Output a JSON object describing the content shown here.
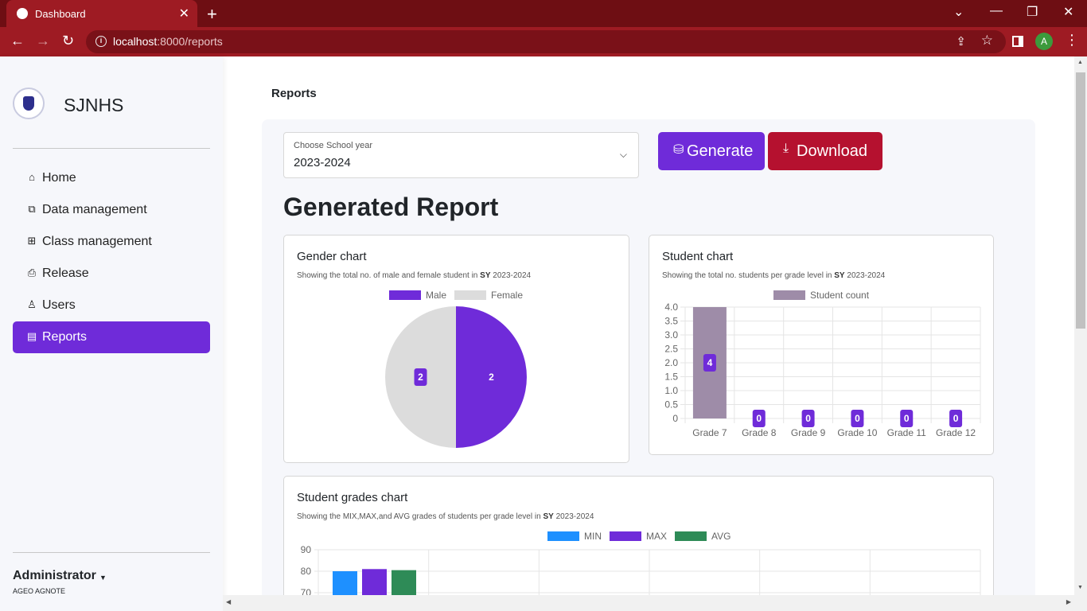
{
  "browser": {
    "tab_title": "Dashboard",
    "url_host": "localhost",
    "url_rest": ":8000/reports",
    "avatar_letter": "A",
    "theme_color": "#9e1b23"
  },
  "sidebar": {
    "brand": "SJNHS",
    "items": [
      {
        "label": "Home",
        "icon": "home-icon"
      },
      {
        "label": "Data management",
        "icon": "copy-icon"
      },
      {
        "label": "Class management",
        "icon": "grid-icon"
      },
      {
        "label": "Release",
        "icon": "printer-icon"
      },
      {
        "label": "Users",
        "icon": "person-icon"
      },
      {
        "label": "Reports",
        "icon": "report-icon",
        "active": true
      }
    ],
    "user": {
      "role": "Administrator",
      "name": "AGEO AGNOTE"
    }
  },
  "page": {
    "title": "Reports",
    "select": {
      "label": "Choose School year",
      "value": "2023-2024"
    },
    "generate_label": "Generate",
    "download_label": "Download",
    "heading": "Generated Report"
  },
  "colors": {
    "accent": "#6f2bd9",
    "danger": "#b5112f",
    "female": "#dcdcdc",
    "student": "#9e8ca8",
    "min": "#1e90ff",
    "avg": "#2e8b57"
  },
  "chart_data": [
    {
      "type": "pie",
      "title": "Gender chart",
      "subtitle_prefix": "Showing the total no. of male and female student in",
      "sy_label": "SY",
      "sy_value": "2023-2024",
      "categories": [
        "Male",
        "Female"
      ],
      "values": [
        2,
        2
      ],
      "legend": "top"
    },
    {
      "type": "bar",
      "title": "Student chart",
      "subtitle_prefix": "Showing the total no. students per grade level in",
      "sy_label": "SY",
      "sy_value": "2023-2024",
      "categories": [
        "Grade 7",
        "Grade 8",
        "Grade 9",
        "Grade 10",
        "Grade 11",
        "Grade 12"
      ],
      "series": [
        {
          "name": "Student count",
          "values": [
            4,
            0,
            0,
            0,
            0,
            0
          ]
        }
      ],
      "ylim": [
        0,
        4
      ],
      "yticks": [
        "0",
        "0.5",
        "1.0",
        "1.5",
        "2.0",
        "2.5",
        "3.0",
        "3.5",
        "4.0"
      ],
      "grid": true,
      "legend": "top"
    },
    {
      "type": "bar",
      "title": "Student grades chart",
      "subtitle_prefix": "Showing the MIX,MAX,and AVG grades of students per grade level in",
      "sy_label": "SY",
      "sy_value": "2023-2024",
      "series": [
        {
          "name": "MIN",
          "values": [
            80
          ]
        },
        {
          "name": "MAX",
          "values": [
            81
          ]
        },
        {
          "name": "AVG",
          "values": [
            80.5
          ]
        }
      ],
      "yticks_visible": [
        "90",
        "80",
        "70"
      ],
      "grid": true,
      "legend": "top"
    }
  ]
}
